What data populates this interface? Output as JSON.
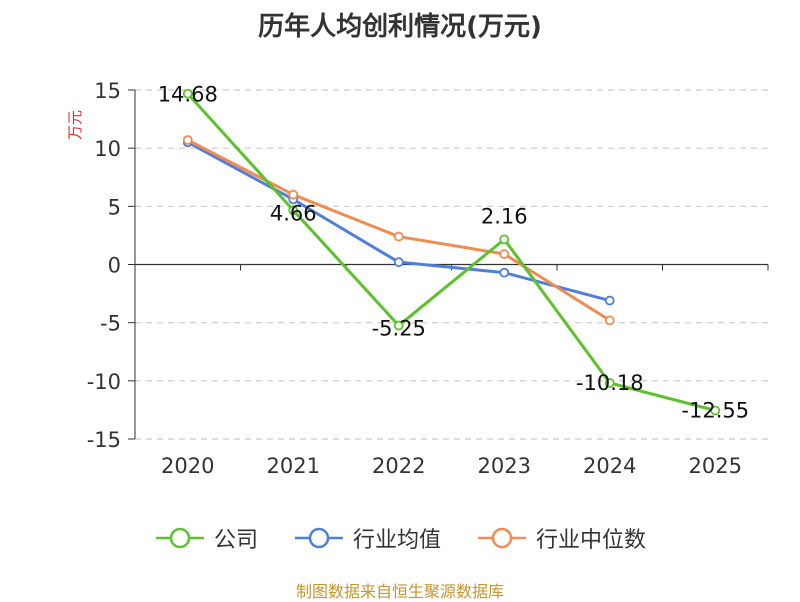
{
  "title": "历年人均创利情况(万元)",
  "source_text": "制图数据来自恒生聚源数据库",
  "chart_data": {
    "type": "line",
    "title": "历年人均创利情况(万元)",
    "ylabel": "万元",
    "xlabel": "",
    "categories": [
      "2020",
      "2021",
      "2022",
      "2023",
      "2024",
      "2025"
    ],
    "ylim": [
      -15,
      15
    ],
    "yticks": [
      15,
      10,
      5,
      0,
      -5,
      -10,
      -15
    ],
    "grid": true,
    "legend_position": "bottom",
    "series": [
      {
        "name": "公司",
        "color": "#5bc22d",
        "values": [
          14.68,
          4.66,
          -5.25,
          2.16,
          -10.18,
          -12.55
        ],
        "labels": [
          "14.68",
          "4.66",
          "-5.25",
          "2.16",
          "-10.18",
          "-12.55"
        ]
      },
      {
        "name": "行业均值",
        "color": "#4f7fdc",
        "values": [
          10.5,
          5.6,
          0.2,
          -0.7,
          -3.1,
          null
        ]
      },
      {
        "name": "行业中位数",
        "color": "#f28b50",
        "values": [
          10.7,
          6.0,
          2.4,
          0.9,
          -4.8,
          null
        ]
      }
    ]
  }
}
